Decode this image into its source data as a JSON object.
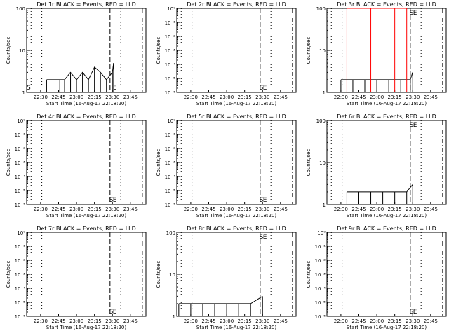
{
  "figure": {
    "start_time": "16-Aug-17 22:18:20",
    "time_ticks": [
      "22:30",
      "22:45",
      "23:00",
      "23:15",
      "23:30",
      "23:45"
    ],
    "colors": {
      "events": "#000000",
      "lld": "#ff0000",
      "background": "#ffffff"
    }
  },
  "chart_data": [
    {
      "type": "line",
      "title": "Det 1r BLACK = Events, RED = LLD",
      "xlabel": "Start Time (16-Aug-17 22:18:20)",
      "ylabel": "Counts/sec",
      "yscale": "log",
      "ylim": [
        1,
        100
      ],
      "ytick_labels": [
        "1",
        "10",
        "100"
      ],
      "xlim": [
        "22:18:20",
        "23:58:00"
      ],
      "markers": {
        "S": "22:20",
        "E": "23:32"
      },
      "series": [
        {
          "x": [
            "22:35",
            "22:46",
            "22:50",
            "22:55",
            "23:00",
            "23:05",
            "23:10",
            "23:15",
            "23:20",
            "23:25",
            "23:30",
            "23:31"
          ],
          "values": [
            2,
            2,
            2,
            3,
            2,
            3,
            2,
            4,
            3,
            2,
            3,
            5
          ]
        }
      ]
    },
    {
      "type": "line",
      "title": "Det 2r BLACK = Events, RED = LLD",
      "xlabel": "Start Time (16-Aug-17 22:18:20)",
      "ylabel": "Counts/sec",
      "yscale": "log",
      "ylim": [
        1e-06,
        1
      ],
      "ytick_labels": [
        "10⁻⁶",
        "10⁻⁵",
        "10⁻⁴",
        "10⁻³",
        "10⁻²",
        "10⁻¹",
        "10⁰"
      ],
      "xlim": [
        "22:18:20",
        "23:58:00"
      ],
      "markers": {
        "S": "23:29",
        "E": "23:32"
      },
      "series": []
    },
    {
      "type": "line",
      "title": "Det 3r BLACK = Events, RED = LLD",
      "xlabel": "Start Time (16-Aug-17 22:18:20)",
      "ylabel": "Counts/sec",
      "yscale": "log",
      "ylim": [
        1,
        100
      ],
      "ytick_labels": [
        "1",
        "10",
        "100"
      ],
      "xlim": [
        "22:18:20",
        "23:58:00"
      ],
      "markers": {
        "S": "23:29",
        "E": "23:32"
      },
      "series": [
        {
          "x": [
            "22:30",
            "22:40",
            "22:50",
            "23:00",
            "23:10",
            "23:20",
            "23:28",
            "23:30"
          ],
          "values": [
            2,
            2,
            2,
            2,
            2,
            2,
            2,
            3
          ]
        },
        {
          "x": [
            "22:35",
            "22:55",
            "23:15",
            "23:25"
          ],
          "values": [
            100,
            100,
            100,
            100
          ]
        }
      ]
    },
    {
      "type": "line",
      "title": "Det 4r BLACK = Events, RED = LLD",
      "xlabel": "Start Time (16-Aug-17 22:18:20)",
      "ylabel": "Counts/sec",
      "yscale": "log",
      "ylim": [
        1e-06,
        1
      ],
      "ytick_labels": [
        "10⁻⁶",
        "10⁻⁵",
        "10⁻⁴",
        "10⁻³",
        "10⁻²",
        "10⁻¹",
        "10⁰"
      ],
      "xlim": [
        "22:18:20",
        "23:58:00"
      ],
      "markers": {
        "S": "23:29",
        "E": "23:32"
      },
      "series": []
    },
    {
      "type": "line",
      "title": "Det 5r BLACK = Events, RED = LLD",
      "xlabel": "Start Time (16-Aug-17 22:18:20)",
      "ylabel": "Counts/sec",
      "yscale": "log",
      "ylim": [
        1e-06,
        1
      ],
      "ytick_labels": [
        "10⁻⁶",
        "10⁻⁵",
        "10⁻⁴",
        "10⁻³",
        "10⁻²",
        "10⁻¹",
        "10⁰"
      ],
      "xlim": [
        "22:18:20",
        "23:58:00"
      ],
      "markers": {
        "S": "23:29",
        "E": "23:32"
      },
      "series": []
    },
    {
      "type": "line",
      "title": "Det 6r BLACK = Events, RED = LLD",
      "xlabel": "Start Time (16-Aug-17 22:18:20)",
      "ylabel": "Counts/sec",
      "yscale": "log",
      "ylim": [
        1,
        100
      ],
      "ytick_labels": [
        "1",
        "10",
        "100"
      ],
      "xlim": [
        "22:18:20",
        "23:58:00"
      ],
      "markers": {
        "S": "23:29",
        "E": "23:32"
      },
      "series": [
        {
          "x": [
            "22:35",
            "22:45",
            "22:55",
            "23:05",
            "23:15",
            "23:25",
            "23:30"
          ],
          "values": [
            2,
            2,
            2,
            2,
            2,
            2,
            3
          ]
        }
      ]
    },
    {
      "type": "line",
      "title": "Det 7r BLACK = Events, RED = LLD",
      "xlabel": "Start Time (16-Aug-17 22:18:20)",
      "ylabel": "Counts/sec",
      "yscale": "log",
      "ylim": [
        1e-06,
        1
      ],
      "ytick_labels": [
        "10⁻⁶",
        "10⁻⁵",
        "10⁻⁴",
        "10⁻³",
        "10⁻²",
        "10⁻¹",
        "10⁰"
      ],
      "xlim": [
        "22:18:20",
        "23:58:00"
      ],
      "markers": {
        "S": "23:29",
        "E": "23:32"
      },
      "series": []
    },
    {
      "type": "line",
      "title": "Det 8r BLACK = Events, RED = LLD",
      "xlabel": "Start Time (16-Aug-17 22:18:20)",
      "ylabel": "Counts/sec",
      "yscale": "log",
      "ylim": [
        1,
        100
      ],
      "ytick_labels": [
        "1",
        "10",
        "100"
      ],
      "xlim": [
        "22:18:20",
        "23:58:00"
      ],
      "markers": {
        "S": "23:29",
        "E": "23:32"
      },
      "series": [
        {
          "x": [
            "22:20",
            "22:30",
            "22:40",
            "22:50",
            "23:00",
            "23:10",
            "23:20",
            "23:30"
          ],
          "values": [
            2,
            2,
            2,
            2,
            2,
            2,
            2,
            3
          ]
        }
      ]
    },
    {
      "type": "line",
      "title": "Det 9r BLACK = Events, RED = LLD",
      "xlabel": "Start Time (16-Aug-17 22:18:20)",
      "ylabel": "Counts/sec",
      "yscale": "log",
      "ylim": [
        1e-06,
        1
      ],
      "ytick_labels": [
        "10⁻⁶",
        "10⁻⁵",
        "10⁻⁴",
        "10⁻³",
        "10⁻²",
        "10⁻¹",
        "10⁰"
      ],
      "xlim": [
        "22:18:20",
        "23:58:00"
      ],
      "markers": {
        "S": "23:29",
        "E": "23:32"
      },
      "series": []
    }
  ]
}
